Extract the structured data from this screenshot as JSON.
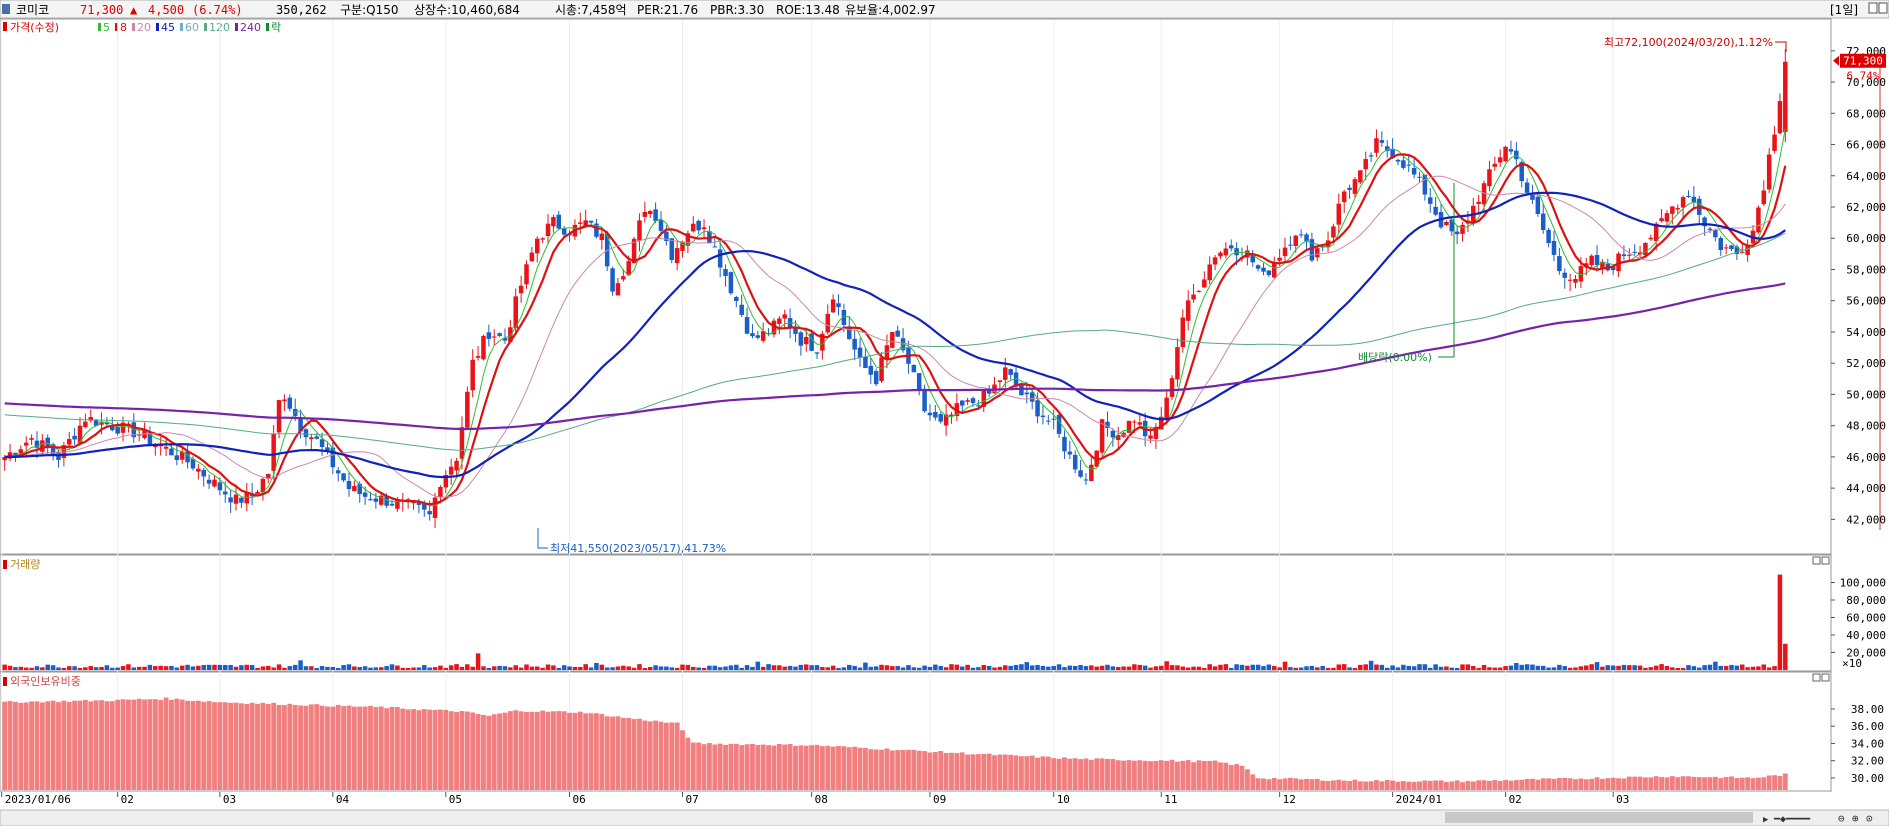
{
  "header": {
    "name": "코미코",
    "price": "71,300",
    "change_arrow": "▲",
    "change": "4,500",
    "change_pct": "(6.74%)",
    "volume": "350,262",
    "section": "구분:Q150",
    "listed": "상장수:10,460,684",
    "mcap": "시총:7,458억",
    "per": "PER:21.76",
    "pbr": "PBR:3.30",
    "roe": "ROE:13.48",
    "float": "유보율:4,002.97",
    "period": "[1일]"
  },
  "legend": {
    "price_label": "가격(수정)",
    "ma": [
      {
        "label": "5",
        "color": "#33bb33"
      },
      {
        "label": "8",
        "color": "#dd1111"
      },
      {
        "label": "20",
        "color": "#cc88aa"
      },
      {
        "label": "45",
        "color": "#1122bb"
      },
      {
        "label": "60",
        "color": "#77aacc"
      },
      {
        "label": "120",
        "color": "#55aa88"
      },
      {
        "label": "240",
        "color": "#7722aa"
      },
      {
        "label": "락",
        "color": "#118833"
      }
    ]
  },
  "volume_panel": {
    "title": "거래량",
    "unit": "×10"
  },
  "foreign_panel": {
    "title": "외국인보유비중"
  },
  "colors": {
    "up": "#e8141a",
    "down": "#1a5fc8",
    "foreign_bar": "#f27f7f"
  },
  "chart_data": {
    "type": "candlestick",
    "ticker": "코미코",
    "x_ticks": [
      "2023/01/06",
      "02",
      "03",
      "04",
      "05",
      "06",
      "07",
      "08",
      "09",
      "10",
      "11",
      "12",
      "2024/01",
      "02",
      "03"
    ],
    "price_axis": {
      "ticks": [
        "42,000",
        "44,000",
        "46,000",
        "48,000",
        "50,000",
        "52,000",
        "54,000",
        "56,000",
        "58,000",
        "60,000",
        "62,000",
        "64,000",
        "66,000",
        "68,000",
        "70,000",
        "72,000"
      ],
      "range": [
        41000,
        72500
      ]
    },
    "volume_axis": {
      "ticks": [
        "20,000",
        "40,000",
        "60,000",
        "80,000",
        "100,000"
      ],
      "range": [
        0,
        112000
      ]
    },
    "foreign_axis": {
      "ticks": [
        "30.00",
        "32.00",
        "34.00",
        "36.00",
        "38.00"
      ],
      "range": [
        28.6,
        40.2
      ]
    },
    "annotations": {
      "high": "최고72,100(2024/03/20),1.12%",
      "low": "최저41,550(2023/05/17),41.73%",
      "dividend": "배당락(0.00%)"
    },
    "last_price": "71,300",
    "last_change_pct": "6.74%",
    "price_path": [
      [
        0,
        46000
      ],
      [
        5,
        47200
      ],
      [
        10,
        46000
      ],
      [
        15,
        48500
      ],
      [
        20,
        48000
      ],
      [
        25,
        47500
      ],
      [
        30,
        46500
      ],
      [
        35,
        45500
      ],
      [
        40,
        44000
      ],
      [
        43,
        43200
      ],
      [
        46,
        43500
      ],
      [
        49,
        45000
      ],
      [
        51,
        49500
      ],
      [
        52,
        50000
      ],
      [
        55,
        48000
      ],
      [
        58,
        47000
      ],
      [
        61,
        45500
      ],
      [
        64,
        44000
      ],
      [
        67,
        43500
      ],
      [
        70,
        43300
      ],
      [
        73,
        43000
      ],
      [
        76,
        42800
      ],
      [
        79,
        42200
      ],
      [
        81,
        44500
      ],
      [
        84,
        46000
      ],
      [
        87,
        52000
      ],
      [
        90,
        54000
      ],
      [
        93,
        53500
      ],
      [
        96,
        57000
      ],
      [
        99,
        60000
      ],
      [
        102,
        61000
      ],
      [
        105,
        60500
      ],
      [
        108,
        61000
      ],
      [
        111,
        60000
      ],
      [
        113,
        57000
      ],
      [
        116,
        58500
      ],
      [
        119,
        62000
      ],
      [
        121,
        61500
      ],
      [
        124,
        59000
      ],
      [
        127,
        60500
      ],
      [
        130,
        61000
      ],
      [
        133,
        58500
      ],
      [
        136,
        56000
      ],
      [
        139,
        53500
      ],
      [
        142,
        54000
      ],
      [
        145,
        55000
      ],
      [
        148,
        53500
      ],
      [
        151,
        53000
      ],
      [
        154,
        56500
      ],
      [
        156,
        54500
      ],
      [
        159,
        52000
      ],
      [
        162,
        51000
      ],
      [
        165,
        54000
      ],
      [
        168,
        52000
      ],
      [
        171,
        49000
      ],
      [
        174,
        48000
      ],
      [
        177,
        49000
      ],
      [
        180,
        49500
      ],
      [
        183,
        50000
      ],
      [
        186,
        51500
      ],
      [
        189,
        50000
      ],
      [
        192,
        49000
      ],
      [
        195,
        48000
      ],
      [
        198,
        46000
      ],
      [
        201,
        44500
      ],
      [
        204,
        48000
      ],
      [
        207,
        47500
      ],
      [
        210,
        48500
      ],
      [
        213,
        47000
      ],
      [
        216,
        49500
      ],
      [
        219,
        55000
      ],
      [
        222,
        57000
      ],
      [
        225,
        59000
      ],
      [
        228,
        59500
      ],
      [
        231,
        59000
      ],
      [
        234,
        57500
      ],
      [
        237,
        59000
      ],
      [
        240,
        60500
      ],
      [
        243,
        59000
      ],
      [
        246,
        60000
      ],
      [
        249,
        63000
      ],
      [
        252,
        64000
      ],
      [
        255,
        66000
      ],
      [
        258,
        65500
      ],
      [
        261,
        64500
      ],
      [
        264,
        63000
      ],
      [
        267,
        61000
      ],
      [
        270,
        60000
      ],
      [
        273,
        62000
      ],
      [
        276,
        64000
      ],
      [
        279,
        66000
      ],
      [
        281,
        65000
      ],
      [
        283,
        63000
      ],
      [
        286,
        60500
      ],
      [
        289,
        58000
      ],
      [
        292,
        57500
      ],
      [
        295,
        58500
      ],
      [
        298,
        58000
      ],
      [
        301,
        59000
      ],
      [
        304,
        59500
      ],
      [
        307,
        60500
      ],
      [
        310,
        62000
      ],
      [
        313,
        63000
      ],
      [
        316,
        61000
      ],
      [
        319,
        59500
      ],
      [
        322,
        59000
      ],
      [
        325,
        60500
      ],
      [
        327,
        63500
      ],
      [
        329,
        67000
      ],
      [
        331,
        71300
      ]
    ],
    "ma_series": [
      {
        "name": "5",
        "color": "#33bb33",
        "width": 1,
        "period": 5
      },
      {
        "name": "8",
        "color": "#dd1111",
        "width": 2.2,
        "period": 8
      },
      {
        "name": "20",
        "color": "#cc88aa",
        "width": 1,
        "period": 20
      },
      {
        "name": "45",
        "color": "#1122bb",
        "width": 2.2,
        "period": 45
      },
      {
        "name": "120",
        "color": "#55aa88",
        "width": 1,
        "period": 120
      },
      {
        "name": "240",
        "color": "#7722aa",
        "width": 2.2,
        "period": 240
      }
    ],
    "foreign_path": [
      [
        0,
        38.8
      ],
      [
        20,
        39.0
      ],
      [
        30,
        39.2
      ],
      [
        40,
        38.8
      ],
      [
        55,
        38.5
      ],
      [
        70,
        38.2
      ],
      [
        85,
        37.7
      ],
      [
        90,
        37.2
      ],
      [
        95,
        37.8
      ],
      [
        108,
        37.6
      ],
      [
        115,
        37.0
      ],
      [
        125,
        36.3
      ],
      [
        128,
        34.0
      ],
      [
        150,
        33.8
      ],
      [
        165,
        33.3
      ],
      [
        180,
        32.8
      ],
      [
        200,
        32.2
      ],
      [
        225,
        31.9
      ],
      [
        230,
        31.4
      ],
      [
        233,
        30.0
      ],
      [
        250,
        29.7
      ],
      [
        270,
        29.6
      ],
      [
        290,
        29.9
      ],
      [
        310,
        30.2
      ],
      [
        325,
        30.0
      ],
      [
        328,
        30.2
      ],
      [
        331,
        30.4
      ]
    ],
    "volume_profile": {
      "baseline": 4500,
      "spikes": [
        [
          55,
          11000
        ],
        [
          88,
          19000
        ],
        [
          110,
          8000
        ],
        [
          140,
          9500
        ],
        [
          160,
          8500
        ],
        [
          190,
          9000
        ],
        [
          216,
          10000
        ],
        [
          238,
          9500
        ],
        [
          254,
          10500
        ],
        [
          281,
          8000
        ],
        [
          296,
          9000
        ],
        [
          318,
          9500
        ],
        [
          330,
          109000
        ],
        [
          331,
          30000
        ]
      ]
    }
  }
}
